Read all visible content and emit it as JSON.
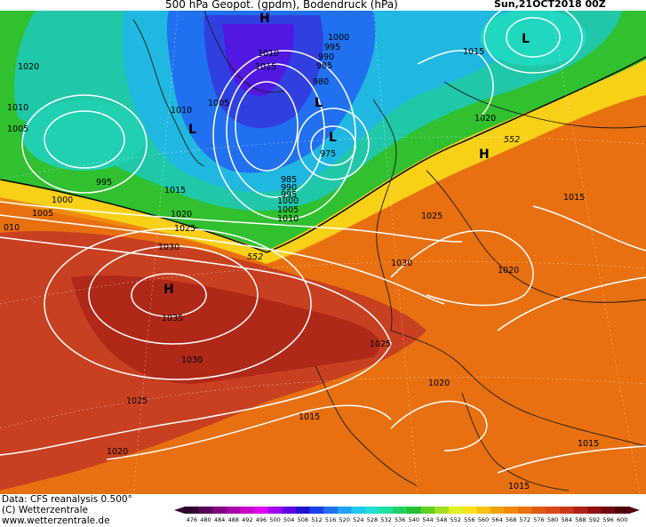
{
  "header": {
    "title": "500 hPa Geopot. (gpdm), Bodendruck (hPa)",
    "datetime": "Sun,21OCT2018 00Z"
  },
  "footer": {
    "source_line": "Data: CFS reanalysis 0.500°",
    "copyright_line": "(C) Wetterzentrale",
    "url_line": "www.wetterzentrale.de"
  },
  "pressure_centers": [
    {
      "symbol": "H",
      "role": "high-top"
    },
    {
      "symbol": "L",
      "role": "low-greenland"
    },
    {
      "symbol": "L",
      "role": "low-iceland-west"
    },
    {
      "symbol": "L",
      "role": "low-iceland-east"
    },
    {
      "symbol": "L",
      "role": "low-north"
    },
    {
      "symbol": "H",
      "role": "high-scandinavia"
    },
    {
      "symbol": "H",
      "role": "high-azores"
    }
  ],
  "isobar_labels": [
    "1020",
    "1010",
    "1005",
    "995",
    "1000",
    "1005",
    "010",
    "1010",
    "1015",
    "1020",
    "1025",
    "1030",
    "1035",
    "1030",
    "1025",
    "1020",
    "1010",
    "1015",
    "1005",
    "1000",
    "995",
    "990",
    "985",
    "980",
    "975",
    "985",
    "990",
    "995",
    "1000",
    "1005",
    "1010",
    "1015",
    "1015",
    "1020",
    "1025",
    "1030",
    "1025",
    "1020",
    "1015",
    "1020",
    "1015",
    "1015"
  ],
  "geopotential_labels": [
    "552",
    "552"
  ],
  "colorbar": {
    "ticks": [
      "476",
      "480",
      "484",
      "488",
      "492",
      "496",
      "500",
      "504",
      "508",
      "512",
      "516",
      "520",
      "524",
      "528",
      "532",
      "536",
      "540",
      "544",
      "548",
      "552",
      "556",
      "560",
      "564",
      "568",
      "572",
      "576",
      "580",
      "584",
      "588",
      "592",
      "596",
      "600"
    ],
    "colors": [
      "#300030",
      "#580058",
      "#800080",
      "#a800a8",
      "#c800c8",
      "#e000f0",
      "#a000f0",
      "#6000e8",
      "#2010d0",
      "#1840e8",
      "#2070f0",
      "#20a0f0",
      "#20c8f0",
      "#20e0d0",
      "#20e0a0",
      "#20d060",
      "#20c030",
      "#60d020",
      "#a0e020",
      "#e0f020",
      "#f8e018",
      "#f8c010",
      "#f0a008",
      "#f08808",
      "#e87008",
      "#e05810",
      "#d84818",
      "#c83818",
      "#b02018",
      "#901010",
      "#700810",
      "#500008"
    ]
  }
}
